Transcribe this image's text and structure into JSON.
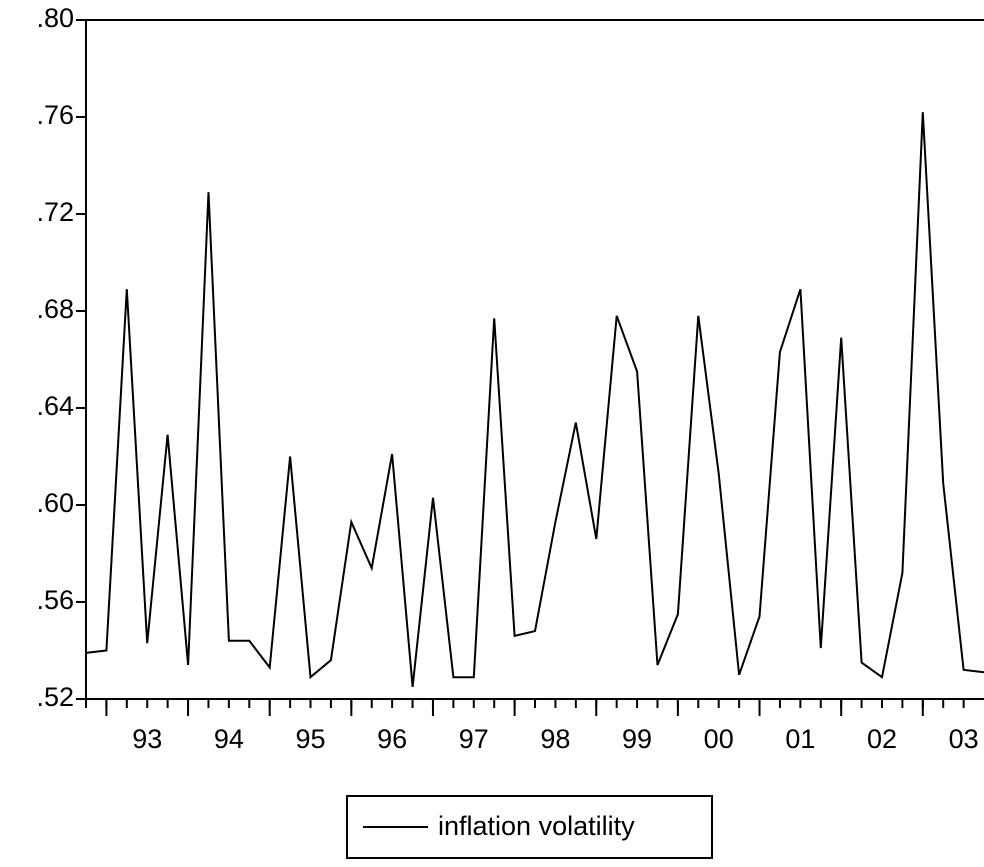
{
  "chart_data": {
    "type": "line",
    "categories": [
      null,
      null,
      null,
      null,
      null,
      null,
      null,
      null,
      null,
      null,
      null,
      null,
      null,
      null,
      null,
      null,
      null,
      null,
      null,
      null,
      null,
      null,
      null,
      null,
      null,
      null,
      null,
      null,
      null,
      null,
      null,
      null,
      null,
      null,
      null,
      null,
      null,
      null,
      null,
      null,
      null,
      null,
      null,
      null,
      null
    ],
    "series": [
      {
        "name": "inflation volatility",
        "color": "#000000",
        "values": [
          0.539,
          0.54,
          0.689,
          0.543,
          0.629,
          0.534,
          0.729,
          0.544,
          0.544,
          0.533,
          0.62,
          0.529,
          0.536,
          0.593,
          0.574,
          0.621,
          0.525,
          0.603,
          0.529,
          0.529,
          0.677,
          0.546,
          0.548,
          0.593,
          0.634,
          0.586,
          0.678,
          0.655,
          0.534,
          0.555,
          0.678,
          0.613,
          0.53,
          0.554,
          0.663,
          0.689,
          0.541,
          0.669,
          0.535,
          0.529,
          0.572,
          0.762,
          0.609,
          0.532,
          0.531
        ]
      }
    ],
    "ylim": [
      0.52,
      0.8
    ],
    "yticks": [
      {
        "value": 0.52,
        "label": ".52"
      },
      {
        "value": 0.56,
        "label": ".56"
      },
      {
        "value": 0.6,
        "label": ".60"
      },
      {
        "value": 0.64,
        "label": ".64"
      },
      {
        "value": 0.68,
        "label": ".68"
      },
      {
        "value": 0.72,
        "label": ".72"
      },
      {
        "value": 0.76,
        "label": ".76"
      },
      {
        "value": 0.8,
        "label": ".80"
      }
    ],
    "xticks": [
      {
        "value": 3,
        "label": "93"
      },
      {
        "value": 7,
        "label": "94"
      },
      {
        "value": 11,
        "label": "95"
      },
      {
        "value": 15,
        "label": "96"
      },
      {
        "value": 19,
        "label": "97"
      },
      {
        "value": 23,
        "label": "98"
      },
      {
        "value": 27,
        "label": "99"
      },
      {
        "value": 31,
        "label": "00"
      },
      {
        "value": 35,
        "label": "01"
      },
      {
        "value": 39,
        "label": "02"
      },
      {
        "value": 43,
        "label": "03"
      }
    ],
    "legend": "bottom"
  }
}
